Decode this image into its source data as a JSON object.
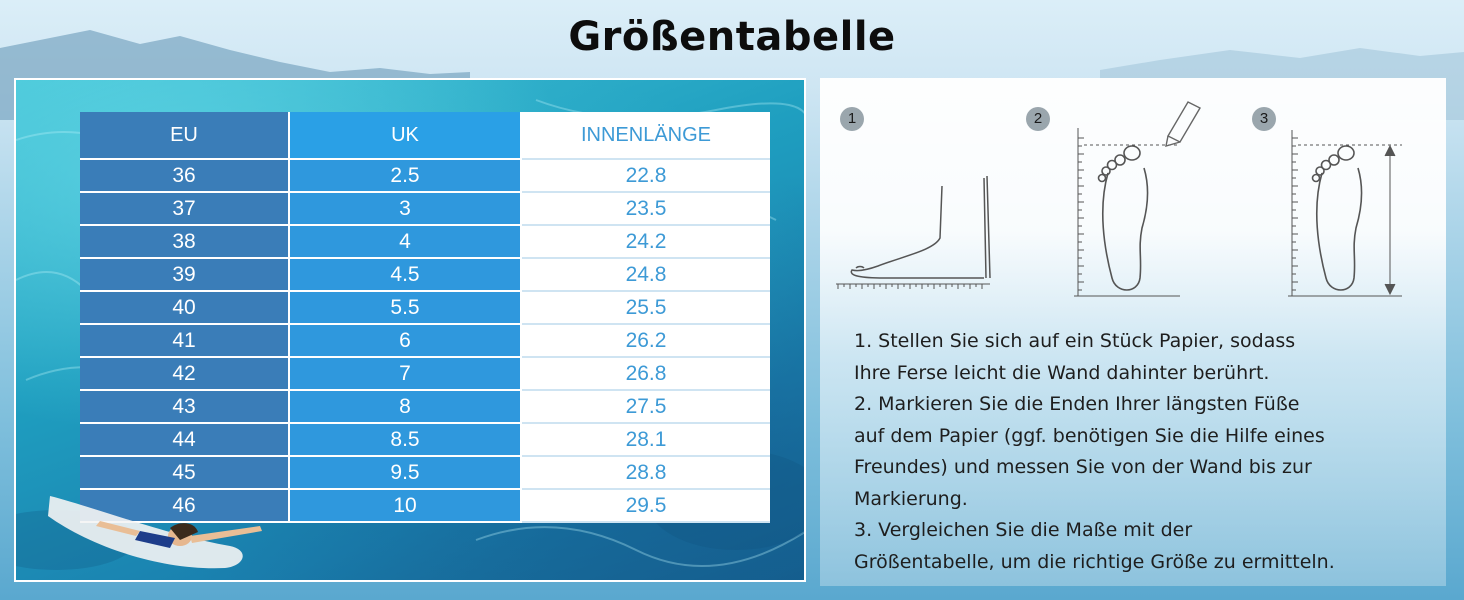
{
  "title": "Größentabelle",
  "table": {
    "headers": {
      "eu": "EU",
      "uk": "UK",
      "inner": "INNENLÄNGE"
    },
    "rows": [
      {
        "eu": "36",
        "uk": "2.5",
        "inner": "22.8"
      },
      {
        "eu": "37",
        "uk": "3",
        "inner": "23.5"
      },
      {
        "eu": "38",
        "uk": "4",
        "inner": "24.2"
      },
      {
        "eu": "39",
        "uk": "4.5",
        "inner": "24.8"
      },
      {
        "eu": "40",
        "uk": "5.5",
        "inner": "25.5"
      },
      {
        "eu": "41",
        "uk": "6",
        "inner": "26.2"
      },
      {
        "eu": "42",
        "uk": "7",
        "inner": "26.8"
      },
      {
        "eu": "43",
        "uk": "8",
        "inner": "27.5"
      },
      {
        "eu": "44",
        "uk": "8.5",
        "inner": "28.1"
      },
      {
        "eu": "45",
        "uk": "9.5",
        "inner": "28.8"
      },
      {
        "eu": "46",
        "uk": "10",
        "inner": "29.5"
      }
    ]
  },
  "steps": [
    "1",
    "2",
    "3"
  ],
  "instructions": [
    "1. Stellen Sie sich auf ein Stück Papier, sodass",
    "Ihre Ferse leicht die Wand dahinter berührt.",
    "2. Markieren Sie die Enden Ihrer längsten Füße",
    "auf dem Papier (ggf. benötigen Sie die Hilfe eines",
    "Freundes) und messen Sie von der Wand bis zur",
    "Markierung.",
    "3. Vergleichen Sie die Maße mit der",
    "Größentabelle, um die richtige Größe zu ermitteln."
  ],
  "colors": {
    "eu_column": "#3a7db8",
    "uk_column": "#2f98dd",
    "inner_text": "#3d9ad6",
    "step_badge": "#9aa6ad"
  }
}
